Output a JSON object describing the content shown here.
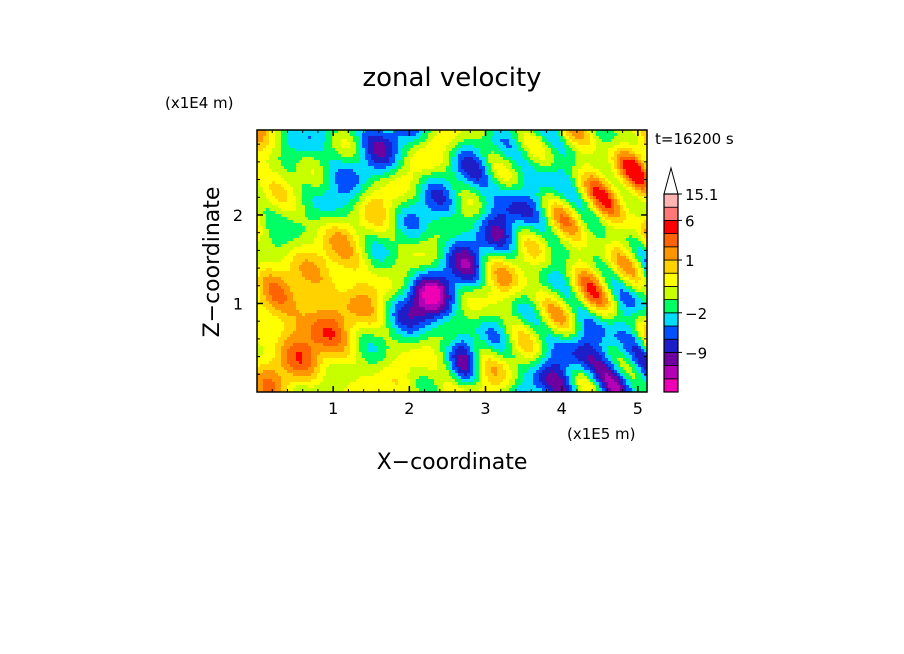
{
  "chart_data": {
    "type": "heatmap",
    "title": "zonal velocity",
    "xlabel": "X−coordinate",
    "ylabel": "Z−coordinate",
    "x_units": "(x1E5 m)",
    "y_units": "(x1E4 m)",
    "time_label": "t=16200 s",
    "xlim": [
      0,
      5.12
    ],
    "ylim": [
      0,
      2.96
    ],
    "x_ticks": [
      1,
      2,
      3,
      4,
      5
    ],
    "x_tick_labels": [
      "1",
      "2",
      "3",
      "4",
      "5"
    ],
    "y_ticks": [
      1,
      2
    ],
    "y_tick_labels": [
      "1",
      "2"
    ],
    "colorbar": {
      "colors": [
        "#f000b4",
        "#b400b4",
        "#6e00a0",
        "#1e1ec8",
        "#0050ff",
        "#00dcff",
        "#00ff64",
        "#c8ff00",
        "#ffff00",
        "#ffd200",
        "#ff9600",
        "#ff6400",
        "#ff0000",
        "#ff7878",
        "#ffb4b4",
        "#ffdcdc"
      ],
      "tick_labels": [
        "15.1",
        "6",
        "1",
        "−2",
        "−9"
      ],
      "tick_values": [
        15.1,
        6,
        1,
        -2,
        -9
      ],
      "extend_max": true
    }
  }
}
